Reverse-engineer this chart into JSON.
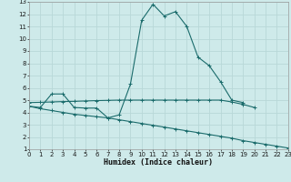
{
  "xlabel": "Humidex (Indice chaleur)",
  "bg_color": "#ceeaea",
  "grid_color": "#b8d8d8",
  "line_color": "#1a6b6b",
  "x_values": [
    0,
    1,
    2,
    3,
    4,
    5,
    6,
    7,
    8,
    9,
    10,
    11,
    12,
    13,
    14,
    15,
    16,
    17,
    18,
    19,
    20,
    21,
    22,
    23
  ],
  "line1_y": [
    4.5,
    4.4,
    5.5,
    5.5,
    4.4,
    4.35,
    4.35,
    3.55,
    3.8,
    6.3,
    11.5,
    12.8,
    11.85,
    12.2,
    11.0,
    8.5,
    7.8,
    6.5,
    5.0,
    4.8,
    null,
    null,
    null,
    null
  ],
  "line2_y": [
    4.8,
    4.82,
    4.85,
    4.88,
    4.9,
    4.93,
    4.96,
    4.98,
    5.0,
    5.0,
    5.0,
    5.0,
    5.0,
    5.0,
    5.0,
    5.0,
    5.0,
    5.0,
    4.85,
    4.65,
    4.4,
    null,
    null,
    null
  ],
  "line3_y": [
    4.5,
    4.3,
    4.15,
    4.0,
    3.85,
    3.75,
    3.65,
    3.55,
    3.4,
    3.25,
    3.1,
    2.95,
    2.8,
    2.65,
    2.5,
    2.35,
    2.2,
    2.05,
    1.9,
    1.7,
    1.55,
    1.4,
    1.25,
    1.1
  ],
  "ylim": [
    1,
    13
  ],
  "xlim": [
    0,
    23
  ],
  "yticks": [
    1,
    2,
    3,
    4,
    5,
    6,
    7,
    8,
    9,
    10,
    11,
    12,
    13
  ],
  "xticks": [
    0,
    1,
    2,
    3,
    4,
    5,
    6,
    7,
    8,
    9,
    10,
    11,
    12,
    13,
    14,
    15,
    16,
    17,
    18,
    19,
    20,
    21,
    22,
    23
  ],
  "tick_fontsize": 5.0,
  "xlabel_fontsize": 6.0
}
